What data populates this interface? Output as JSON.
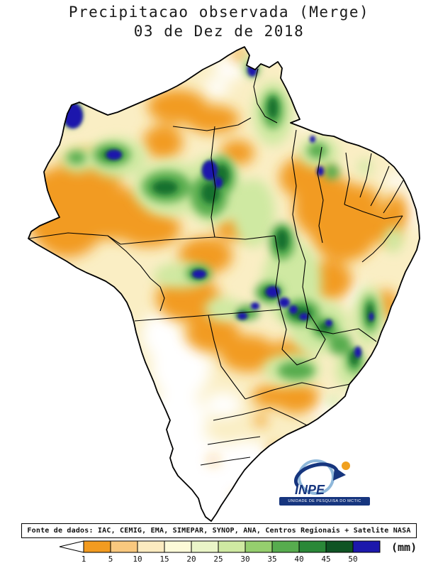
{
  "title": {
    "line1": "Precipitacao observada (Merge)",
    "line2": "03 de Dez de 2018"
  },
  "source_box": {
    "text": "Fonte de dados: IAC, CEMIG, EMA, SIMEPAR, SYNOP, ANA, Centros Regionais + Satelite NASA"
  },
  "legend": {
    "unit": "(mm)",
    "ticks": [
      1,
      5,
      10,
      15,
      20,
      25,
      30,
      35,
      40,
      45,
      50
    ],
    "colors": [
      "#F29B20",
      "#F9C87E",
      "#FCEBC0",
      "#FDFAD8",
      "#EAF5C8",
      "#CFE9A2",
      "#95CE6E",
      "#57AC4E",
      "#2A8838",
      "#0F5424",
      "#1C18AC"
    ],
    "arrow_color": "#FFFFFF"
  },
  "logo": {
    "acronym": "INPE",
    "banner": "UNIDADE DE PESQUISA DO MCTIC",
    "accent_blue": "#16357E",
    "accent_orange": "#F0A01E"
  }
}
